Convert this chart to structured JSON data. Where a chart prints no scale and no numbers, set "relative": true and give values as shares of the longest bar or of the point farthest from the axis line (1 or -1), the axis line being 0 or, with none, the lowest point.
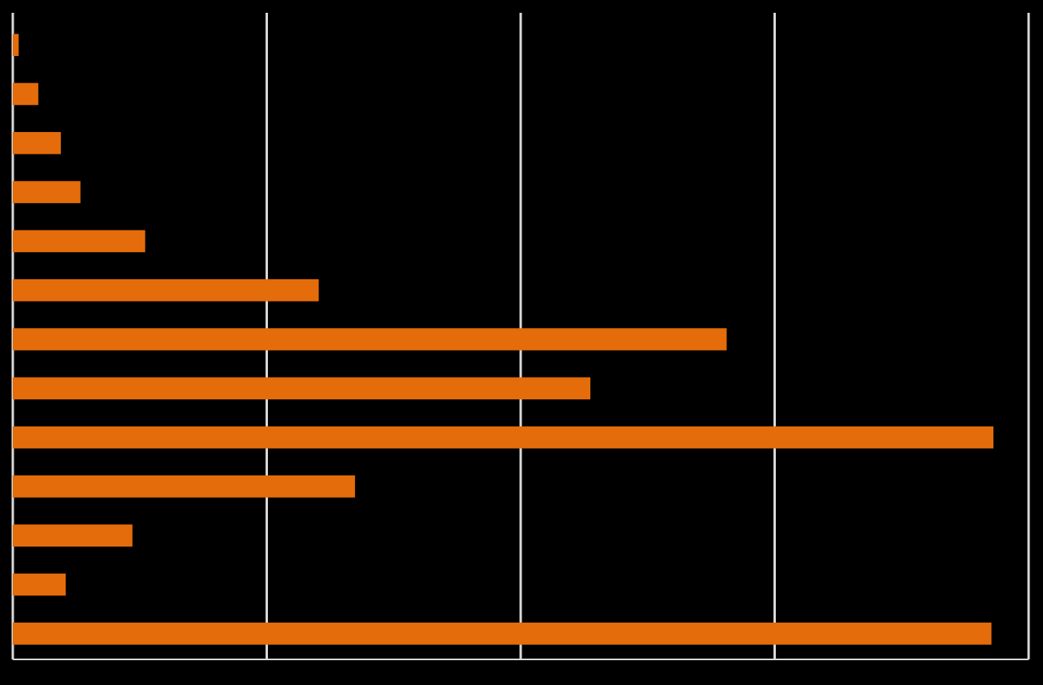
{
  "chart_data": {
    "type": "bar",
    "orientation": "horizontal",
    "relative": true,
    "grid": "x",
    "color": "#e46c0a",
    "categories": [
      null,
      null,
      null,
      null,
      null,
      null,
      null,
      null,
      null,
      null,
      null,
      null,
      null
    ],
    "values": [
      0.006,
      0.026,
      0.049,
      0.069,
      0.135,
      0.312,
      0.728,
      0.589,
      1,
      0.349,
      0.122,
      0.054,
      0.998
    ]
  }
}
